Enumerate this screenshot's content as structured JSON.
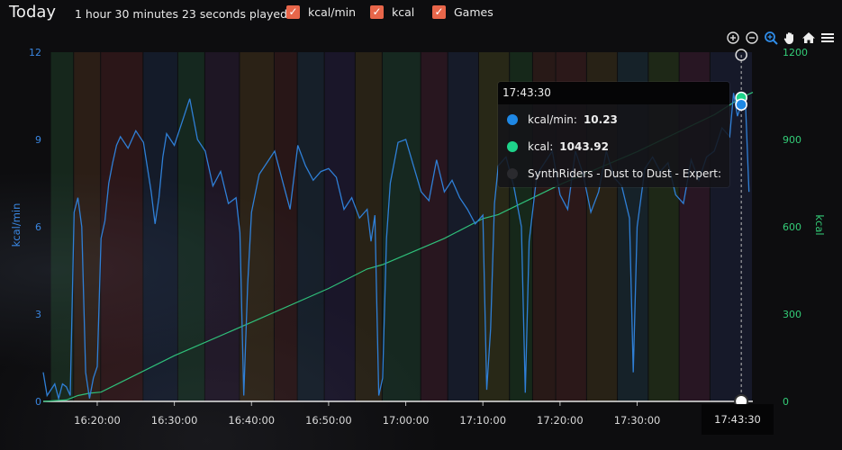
{
  "header": {
    "title": "Today",
    "played": "1 hour 30 minutes 23 seconds played",
    "toggles": [
      {
        "label": "kcal/min",
        "checked": true
      },
      {
        "label": "kcal",
        "checked": true
      },
      {
        "label": "Games",
        "checked": true
      }
    ]
  },
  "toolbar": [
    "zoom-in-icon",
    "zoom-out-icon",
    "zoom-select-icon",
    "pan-hand-icon",
    "home-icon",
    "menu-icon"
  ],
  "tooltip": {
    "time": "17:43:30",
    "rows": [
      {
        "label": "kcal/min:",
        "value": "10.23",
        "color": "#1e88e5"
      },
      {
        "label": "kcal:",
        "value": "1043.92",
        "color": "#1ed38a"
      },
      {
        "label": "SynthRiders - Dust to Dust - Expert:",
        "value": "",
        "color": "#2a2a2e"
      }
    ]
  },
  "crosshair_label": "17:43:30",
  "colors": {
    "kcal_per_min": "#2f7fd6",
    "kcal": "#2fbf7a",
    "accent": "#e8664a"
  },
  "chart_data": {
    "type": "line",
    "x_domain": [
      "16:13:00",
      "17:45:00"
    ],
    "x_ticks": [
      "16:20:00",
      "16:30:00",
      "16:40:00",
      "16:50:00",
      "17:00:00",
      "17:10:00",
      "17:20:00",
      "17:30:00"
    ],
    "yleft": {
      "label": "kcal/min",
      "ticks": [
        "0",
        "3",
        "6",
        "9",
        "12"
      ],
      "range": [
        0,
        12
      ]
    },
    "yright": {
      "label": "kcal",
      "ticks": [
        "0",
        "300",
        "600",
        "900",
        "1200"
      ],
      "range": [
        0,
        1200
      ]
    },
    "series": [
      {
        "name": "kcal/min",
        "axis": "left",
        "points": [
          [
            "16:13:00",
            1.0
          ],
          [
            "16:13:30",
            0.2
          ],
          [
            "16:14:30",
            0.6
          ],
          [
            "16:15:00",
            0.1
          ],
          [
            "16:15:30",
            0.6
          ],
          [
            "16:16:00",
            0.5
          ],
          [
            "16:16:30",
            0.2
          ],
          [
            "16:17:00",
            6.5
          ],
          [
            "16:17:30",
            7.0
          ],
          [
            "16:18:00",
            6.0
          ],
          [
            "16:18:30",
            1.0
          ],
          [
            "16:19:00",
            0.1
          ],
          [
            "16:19:30",
            0.8
          ],
          [
            "16:20:00",
            1.2
          ],
          [
            "16:20:30",
            5.6
          ],
          [
            "16:21:00",
            6.2
          ],
          [
            "16:21:30",
            7.5
          ],
          [
            "16:22:00",
            8.2
          ],
          [
            "16:22:30",
            8.8
          ],
          [
            "16:23:00",
            9.1
          ],
          [
            "16:24:00",
            8.7
          ],
          [
            "16:25:00",
            9.3
          ],
          [
            "16:26:00",
            8.9
          ],
          [
            "16:27:00",
            7.2
          ],
          [
            "16:27:30",
            6.1
          ],
          [
            "16:28:00",
            7.0
          ],
          [
            "16:28:30",
            8.4
          ],
          [
            "16:29:00",
            9.2
          ],
          [
            "16:30:00",
            8.8
          ],
          [
            "16:31:00",
            9.6
          ],
          [
            "16:32:00",
            10.4
          ],
          [
            "16:33:00",
            9.0
          ],
          [
            "16:34:00",
            8.6
          ],
          [
            "16:35:00",
            7.4
          ],
          [
            "16:36:00",
            7.9
          ],
          [
            "16:37:00",
            6.8
          ],
          [
            "16:38:00",
            7.0
          ],
          [
            "16:38:30",
            5.8
          ],
          [
            "16:39:00",
            0.2
          ],
          [
            "16:39:30",
            4.0
          ],
          [
            "16:40:00",
            6.5
          ],
          [
            "16:41:00",
            7.8
          ],
          [
            "16:42:00",
            8.2
          ],
          [
            "16:43:00",
            8.6
          ],
          [
            "16:44:00",
            7.6
          ],
          [
            "16:45:00",
            6.6
          ],
          [
            "16:46:00",
            8.8
          ],
          [
            "16:47:00",
            8.1
          ],
          [
            "16:48:00",
            7.6
          ],
          [
            "16:49:00",
            7.9
          ],
          [
            "16:50:00",
            8.0
          ],
          [
            "16:51:00",
            7.7
          ],
          [
            "16:52:00",
            6.6
          ],
          [
            "16:53:00",
            7.0
          ],
          [
            "16:54:00",
            6.3
          ],
          [
            "16:55:00",
            6.6
          ],
          [
            "16:55:30",
            5.5
          ],
          [
            "16:56:00",
            6.4
          ],
          [
            "16:56:30",
            0.2
          ],
          [
            "16:57:00",
            0.8
          ],
          [
            "16:57:30",
            5.6
          ],
          [
            "16:58:00",
            7.5
          ],
          [
            "16:59:00",
            8.9
          ],
          [
            "17:00:00",
            9.0
          ],
          [
            "17:01:00",
            8.1
          ],
          [
            "17:02:00",
            7.2
          ],
          [
            "17:03:00",
            6.9
          ],
          [
            "17:04:00",
            8.3
          ],
          [
            "17:05:00",
            7.2
          ],
          [
            "17:06:00",
            7.6
          ],
          [
            "17:07:00",
            7.0
          ],
          [
            "17:08:00",
            6.6
          ],
          [
            "17:09:00",
            6.1
          ],
          [
            "17:10:00",
            6.4
          ],
          [
            "17:10:30",
            0.4
          ],
          [
            "17:11:00",
            2.5
          ],
          [
            "17:11:30",
            6.8
          ],
          [
            "17:12:00",
            8.1
          ],
          [
            "17:13:00",
            8.4
          ],
          [
            "17:14:00",
            7.4
          ],
          [
            "17:15:00",
            6.0
          ],
          [
            "17:15:30",
            0.3
          ],
          [
            "17:16:00",
            5.5
          ],
          [
            "17:17:00",
            7.8
          ],
          [
            "17:18:00",
            8.2
          ],
          [
            "17:19:00",
            8.6
          ],
          [
            "17:20:00",
            7.1
          ],
          [
            "17:21:00",
            6.6
          ],
          [
            "17:22:00",
            8.6
          ],
          [
            "17:23:00",
            7.8
          ],
          [
            "17:24:00",
            6.5
          ],
          [
            "17:25:00",
            7.2
          ],
          [
            "17:26:00",
            8.6
          ],
          [
            "17:27:00",
            7.7
          ],
          [
            "17:28:00",
            7.4
          ],
          [
            "17:29:00",
            6.3
          ],
          [
            "17:29:30",
            1.0
          ],
          [
            "17:30:00",
            6.0
          ],
          [
            "17:31:00",
            8.0
          ],
          [
            "17:32:00",
            8.4
          ],
          [
            "17:33:00",
            7.9
          ],
          [
            "17:34:00",
            8.2
          ],
          [
            "17:35:00",
            7.1
          ],
          [
            "17:36:00",
            6.8
          ],
          [
            "17:37:00",
            8.3
          ],
          [
            "17:38:00",
            7.6
          ],
          [
            "17:39:00",
            8.4
          ],
          [
            "17:40:00",
            8.6
          ],
          [
            "17:41:00",
            9.4
          ],
          [
            "17:42:00",
            9.1
          ],
          [
            "17:42:30",
            10.6
          ],
          [
            "17:43:00",
            9.8
          ],
          [
            "17:43:30",
            10.2
          ],
          [
            "17:44:00",
            10.6
          ],
          [
            "17:44:30",
            7.2
          ]
        ]
      },
      {
        "name": "kcal",
        "axis": "right",
        "points": [
          [
            "16:13:00",
            0
          ],
          [
            "16:16:00",
            5
          ],
          [
            "16:17:30",
            20
          ],
          [
            "16:19:00",
            28
          ],
          [
            "16:20:30",
            32
          ],
          [
            "16:30:00",
            157
          ],
          [
            "16:40:00",
            272
          ],
          [
            "16:50:00",
            388
          ],
          [
            "16:55:00",
            455
          ],
          [
            "16:57:00",
            470
          ],
          [
            "17:05:00",
            560
          ],
          [
            "17:10:00",
            628
          ],
          [
            "17:12:00",
            642
          ],
          [
            "17:20:00",
            745
          ],
          [
            "17:30:00",
            858
          ],
          [
            "17:40:00",
            985
          ],
          [
            "17:43:30",
            1044
          ],
          [
            "17:45:00",
            1062
          ]
        ]
      }
    ],
    "games": [
      {
        "start": "16:14:00",
        "end": "16:17:00",
        "color": "#2f6b3f"
      },
      {
        "start": "16:17:00",
        "end": "16:20:30",
        "color": "#7a4d2a"
      },
      {
        "start": "16:20:30",
        "end": "16:26:00",
        "color": "#7a2e33"
      },
      {
        "start": "16:26:00",
        "end": "16:30:30",
        "color": "#27406e"
      },
      {
        "start": "16:30:30",
        "end": "16:34:00",
        "color": "#2a6e4a"
      },
      {
        "start": "16:34:00",
        "end": "16:38:30",
        "color": "#4a2f5e"
      },
      {
        "start": "16:38:30",
        "end": "16:43:00",
        "color": "#7a5a2a"
      },
      {
        "start": "16:43:00",
        "end": "16:46:00",
        "color": "#6e2e2e"
      },
      {
        "start": "16:46:00",
        "end": "16:49:30",
        "color": "#2e4f6e"
      },
      {
        "start": "16:49:30",
        "end": "16:53:30",
        "color": "#3c2e6e"
      },
      {
        "start": "16:53:30",
        "end": "16:57:00",
        "color": "#6e5a2a"
      },
      {
        "start": "16:57:00",
        "end": "17:02:00",
        "color": "#2e6e50"
      },
      {
        "start": "17:02:00",
        "end": "17:05:30",
        "color": "#6e2e4a"
      },
      {
        "start": "17:05:30",
        "end": "17:09:30",
        "color": "#2e3f6e"
      },
      {
        "start": "17:09:30",
        "end": "17:13:30",
        "color": "#6e6e2e"
      },
      {
        "start": "17:13:30",
        "end": "17:16:30",
        "color": "#2e6e3a"
      },
      {
        "start": "17:16:30",
        "end": "17:19:30",
        "color": "#6e3a2e"
      },
      {
        "start": "17:19:30",
        "end": "17:23:30",
        "color": "#7a3535"
      },
      {
        "start": "17:23:30",
        "end": "17:27:30",
        "color": "#6e5a2a"
      },
      {
        "start": "17:27:30",
        "end": "17:31:30",
        "color": "#2e5a6e"
      },
      {
        "start": "17:31:30",
        "end": "17:35:30",
        "color": "#4a6e2e"
      },
      {
        "start": "17:35:30",
        "end": "17:39:30",
        "color": "#6e2e5a"
      },
      {
        "start": "17:39:30",
        "end": "17:45:00",
        "color": "#2e3a6e"
      }
    ],
    "crosshair_x": "17:43:30",
    "legend": "none",
    "grid": false
  }
}
